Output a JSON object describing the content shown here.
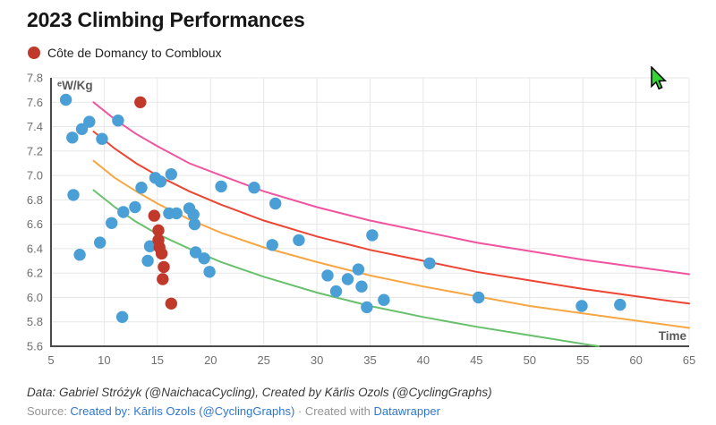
{
  "header": {
    "title": "2023 Climbing Performances"
  },
  "legend": {
    "items": [
      {
        "label": "Côte de Domancy to Combloux",
        "color": "#c0392b"
      }
    ]
  },
  "chart_data": {
    "type": "scatter",
    "title": "2023 Climbing Performances",
    "x_axis": {
      "label": "Time",
      "range": [
        5,
        65
      ],
      "ticks": [
        "5",
        "10",
        "15",
        "20",
        "25",
        "30",
        "35",
        "40",
        "45",
        "50",
        "55",
        "60",
        "65"
      ]
    },
    "y_axis": {
      "label": "ᵉW/Kg",
      "range": [
        5.6,
        7.8
      ],
      "ticks": [
        "7.8",
        "7.6",
        "7.4",
        "7.2",
        "7.0",
        "6.8",
        "6.6",
        "6.4",
        "6.2",
        "6.0",
        "5.8",
        "5.6"
      ]
    },
    "grid": true,
    "legend_position": "top-left",
    "colors": {
      "grid": "#e7e7e7",
      "axis": "#4a4a4a",
      "tick_text": "#6e6e6e"
    },
    "series": [
      {
        "id": "other-performances",
        "name": "unlabeled_blue_points",
        "color": "#4a9fd6",
        "points": [
          [
            6.4,
            7.62
          ],
          [
            7.0,
            7.31
          ],
          [
            7.9,
            7.38
          ],
          [
            8.6,
            7.44
          ],
          [
            9.8,
            7.3
          ],
          [
            11.3,
            7.45
          ],
          [
            7.1,
            6.84
          ],
          [
            7.7,
            6.35
          ],
          [
            9.6,
            6.45
          ],
          [
            10.7,
            6.61
          ],
          [
            11.7,
            5.84
          ],
          [
            11.8,
            6.7
          ],
          [
            12.9,
            6.74
          ],
          [
            13.5,
            6.9
          ],
          [
            14.8,
            6.98
          ],
          [
            15.3,
            6.95
          ],
          [
            16.3,
            7.01
          ],
          [
            16.1,
            6.69
          ],
          [
            16.8,
            6.69
          ],
          [
            18.0,
            6.73
          ],
          [
            18.4,
            6.68
          ],
          [
            18.5,
            6.6
          ],
          [
            14.3,
            6.42
          ],
          [
            14.1,
            6.3
          ],
          [
            18.6,
            6.37
          ],
          [
            19.4,
            6.32
          ],
          [
            19.9,
            6.21
          ],
          [
            21.0,
            6.91
          ],
          [
            24.1,
            6.9
          ],
          [
            26.1,
            6.77
          ],
          [
            25.8,
            6.43
          ],
          [
            28.3,
            6.47
          ],
          [
            31.0,
            6.18
          ],
          [
            31.8,
            6.05
          ],
          [
            32.9,
            6.15
          ],
          [
            33.9,
            6.23
          ],
          [
            34.2,
            6.09
          ],
          [
            35.2,
            6.51
          ],
          [
            34.7,
            5.92
          ],
          [
            36.3,
            5.98
          ],
          [
            40.6,
            6.28
          ],
          [
            45.2,
            6.0
          ],
          [
            54.9,
            5.93
          ],
          [
            58.5,
            5.94
          ]
        ]
      },
      {
        "id": "cote-de-domancy",
        "name": "Côte de Domancy to Combloux",
        "color": "#c0392b",
        "points": [
          [
            13.4,
            7.6
          ],
          [
            14.7,
            6.67
          ],
          [
            15.1,
            6.55
          ],
          [
            15.1,
            6.47
          ],
          [
            15.2,
            6.41
          ],
          [
            15.4,
            6.36
          ],
          [
            15.6,
            6.25
          ],
          [
            15.5,
            6.15
          ],
          [
            16.3,
            5.95
          ]
        ]
      }
    ],
    "curves": [
      {
        "id": "pink",
        "color": "#f0549f",
        "points": [
          [
            9,
            7.6
          ],
          [
            11,
            7.46
          ],
          [
            13,
            7.34
          ],
          [
            15,
            7.24
          ],
          [
            18,
            7.1
          ],
          [
            21,
            7.0
          ],
          [
            25,
            6.87
          ],
          [
            30,
            6.74
          ],
          [
            35,
            6.63
          ],
          [
            40,
            6.54
          ],
          [
            45,
            6.45
          ],
          [
            50,
            6.38
          ],
          [
            55,
            6.31
          ],
          [
            60,
            6.25
          ],
          [
            65,
            6.19
          ]
        ]
      },
      {
        "id": "red",
        "color": "#ed4533",
        "points": [
          [
            9,
            7.36
          ],
          [
            11,
            7.22
          ],
          [
            13,
            7.1
          ],
          [
            15,
            7.0
          ],
          [
            18,
            6.87
          ],
          [
            21,
            6.76
          ],
          [
            25,
            6.63
          ],
          [
            30,
            6.5
          ],
          [
            35,
            6.39
          ],
          [
            40,
            6.3
          ],
          [
            45,
            6.21
          ],
          [
            50,
            6.14
          ],
          [
            55,
            6.07
          ],
          [
            60,
            6.01
          ],
          [
            65,
            5.95
          ]
        ]
      },
      {
        "id": "orange",
        "color": "#f6a744",
        "points": [
          [
            9,
            7.12
          ],
          [
            11,
            6.98
          ],
          [
            13,
            6.87
          ],
          [
            15,
            6.77
          ],
          [
            18,
            6.64
          ],
          [
            21,
            6.53
          ],
          [
            25,
            6.41
          ],
          [
            30,
            6.29
          ],
          [
            35,
            6.18
          ],
          [
            40,
            6.09
          ],
          [
            45,
            6.01
          ],
          [
            50,
            5.93
          ],
          [
            55,
            5.87
          ],
          [
            60,
            5.81
          ],
          [
            65,
            5.75
          ]
        ]
      },
      {
        "id": "green",
        "color": "#69c06c",
        "points": [
          [
            9,
            6.88
          ],
          [
            11,
            6.74
          ],
          [
            13,
            6.62
          ],
          [
            15,
            6.52
          ],
          [
            18,
            6.4
          ],
          [
            21,
            6.29
          ],
          [
            25,
            6.17
          ],
          [
            30,
            6.04
          ],
          [
            35,
            5.93
          ],
          [
            40,
            5.84
          ],
          [
            45,
            5.76
          ],
          [
            50,
            5.69
          ],
          [
            55,
            5.62
          ],
          [
            56.5,
            5.6
          ]
        ]
      }
    ]
  },
  "footer": {
    "data_line": "Data: Gabriel Stróżyk (@NaichacaCycling), Created by Kārlis Ozols (@CyclingGraphs)",
    "source_label": "Source: ",
    "source_link": "Created by: Kārlis Ozols (@CyclingGraphs)",
    "separator": " · ",
    "created_with": "Created with ",
    "datawrapper_link": "Datawrapper"
  },
  "cursor": {
    "color": "#35d435"
  }
}
